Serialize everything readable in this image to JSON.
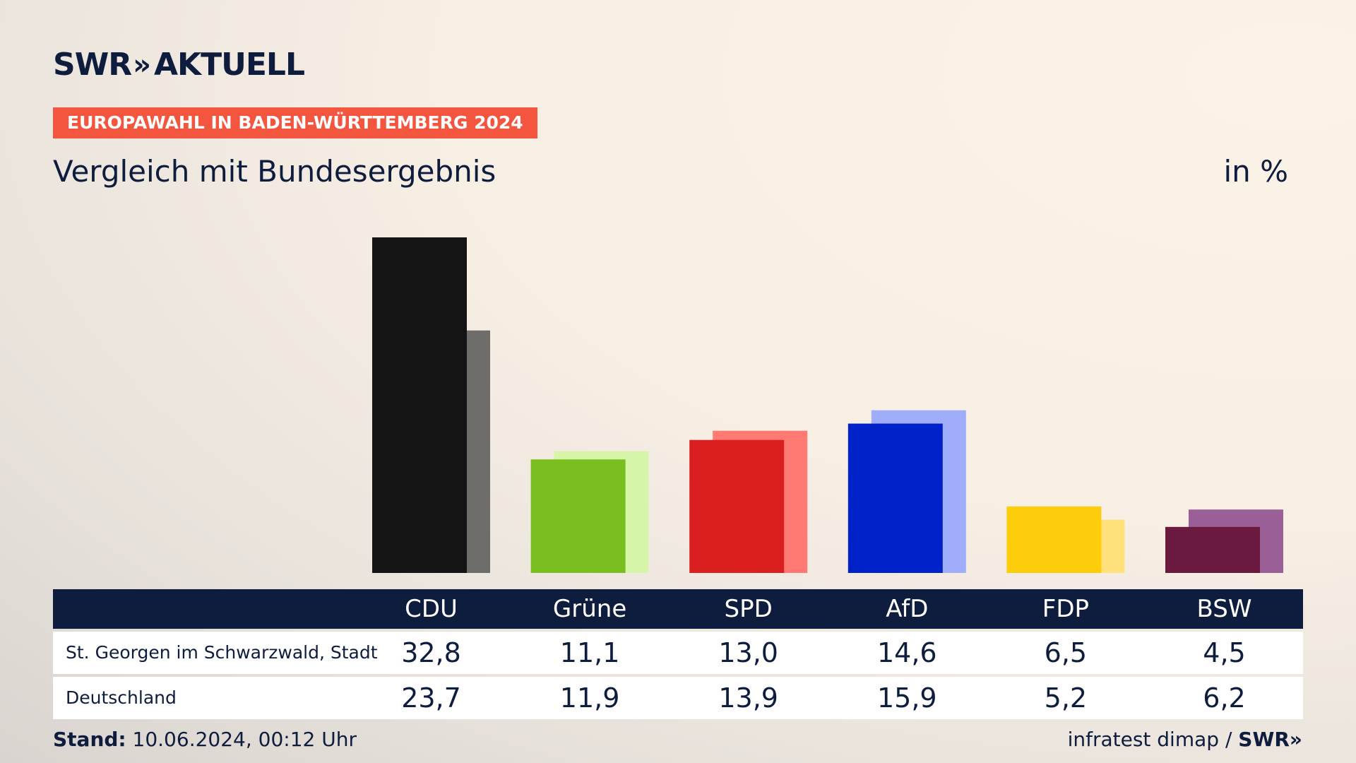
{
  "logo": {
    "brand": "SWR",
    "chevrons": "»",
    "product": "AKTUELL"
  },
  "banner": "EUROPAWAHL IN BADEN-WÜRTTEMBERG 2024",
  "subtitle": "Vergleich mit Bundesergebnis",
  "unit": "in %",
  "footer": {
    "stand_label": "Stand:",
    "stand_value": "10.06.2024, 00:12 Uhr",
    "source": "infratest dimap /",
    "source_brand": "SWR»"
  },
  "table": {
    "rows": [
      {
        "label": "St. Georgen im Schwarzwald, Stadt",
        "values": [
          "32,8",
          "11,1",
          "13,0",
          "14,6",
          "6,5",
          "4,5"
        ]
      },
      {
        "label": "Deutschland",
        "values": [
          "23,7",
          "11,9",
          "13,9",
          "15,9",
          "5,2",
          "6,2"
        ]
      }
    ]
  },
  "chart_data": {
    "type": "bar",
    "categories": [
      "CDU",
      "Grüne",
      "SPD",
      "AfD",
      "FDP",
      "BSW"
    ],
    "series": [
      {
        "name": "St. Georgen im Schwarzwald, Stadt",
        "values": [
          32.8,
          11.1,
          13.0,
          14.6,
          6.5,
          4.5
        ]
      },
      {
        "name": "Deutschland",
        "values": [
          23.7,
          11.9,
          13.9,
          15.9,
          5.2,
          6.2
        ]
      }
    ],
    "colors_primary": [
      "#141414",
      "#7abf1f",
      "#d91f1f",
      "#0022c8",
      "#fdcd0c",
      "#6a1a3f"
    ],
    "colors_secondary": [
      "#6f6d6a",
      "#d6f5a8",
      "#ff7a72",
      "#a0adfb",
      "#ffe07a",
      "#9b5f97"
    ],
    "title": "",
    "xlabel": "",
    "ylabel": "",
    "ylim": [
      0,
      32.8
    ],
    "grid": false,
    "legend": "none"
  }
}
